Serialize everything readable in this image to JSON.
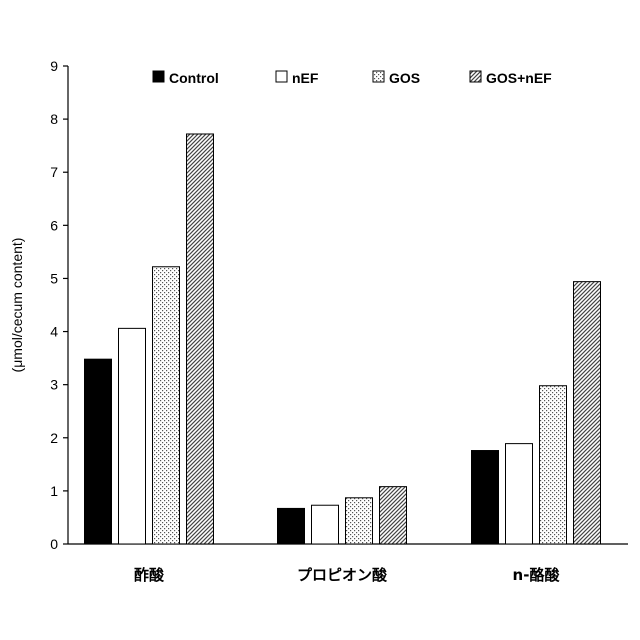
{
  "chart_data": {
    "type": "bar",
    "title": "",
    "xlabel": "",
    "ylabel": "(μmol/cecum content)",
    "ylim": [
      0,
      9
    ],
    "yticks": [
      0,
      1,
      2,
      3,
      4,
      5,
      6,
      7,
      8,
      9
    ],
    "categories": [
      "酢酸",
      "プロピオン酸",
      "n-酪酸"
    ],
    "series": [
      {
        "name": "Control",
        "fill": "solid-black",
        "values": [
          3.48,
          0.67,
          1.76
        ]
      },
      {
        "name": "nEF",
        "fill": "white",
        "values": [
          4.06,
          0.73,
          1.89
        ]
      },
      {
        "name": "GOS",
        "fill": "dotted",
        "values": [
          5.22,
          0.87,
          2.98
        ]
      },
      {
        "name": "GOS+nEF",
        "fill": "diagonal-hatch",
        "values": [
          7.72,
          1.08,
          4.94
        ]
      }
    ],
    "grid": false,
    "legend_position": "top"
  }
}
